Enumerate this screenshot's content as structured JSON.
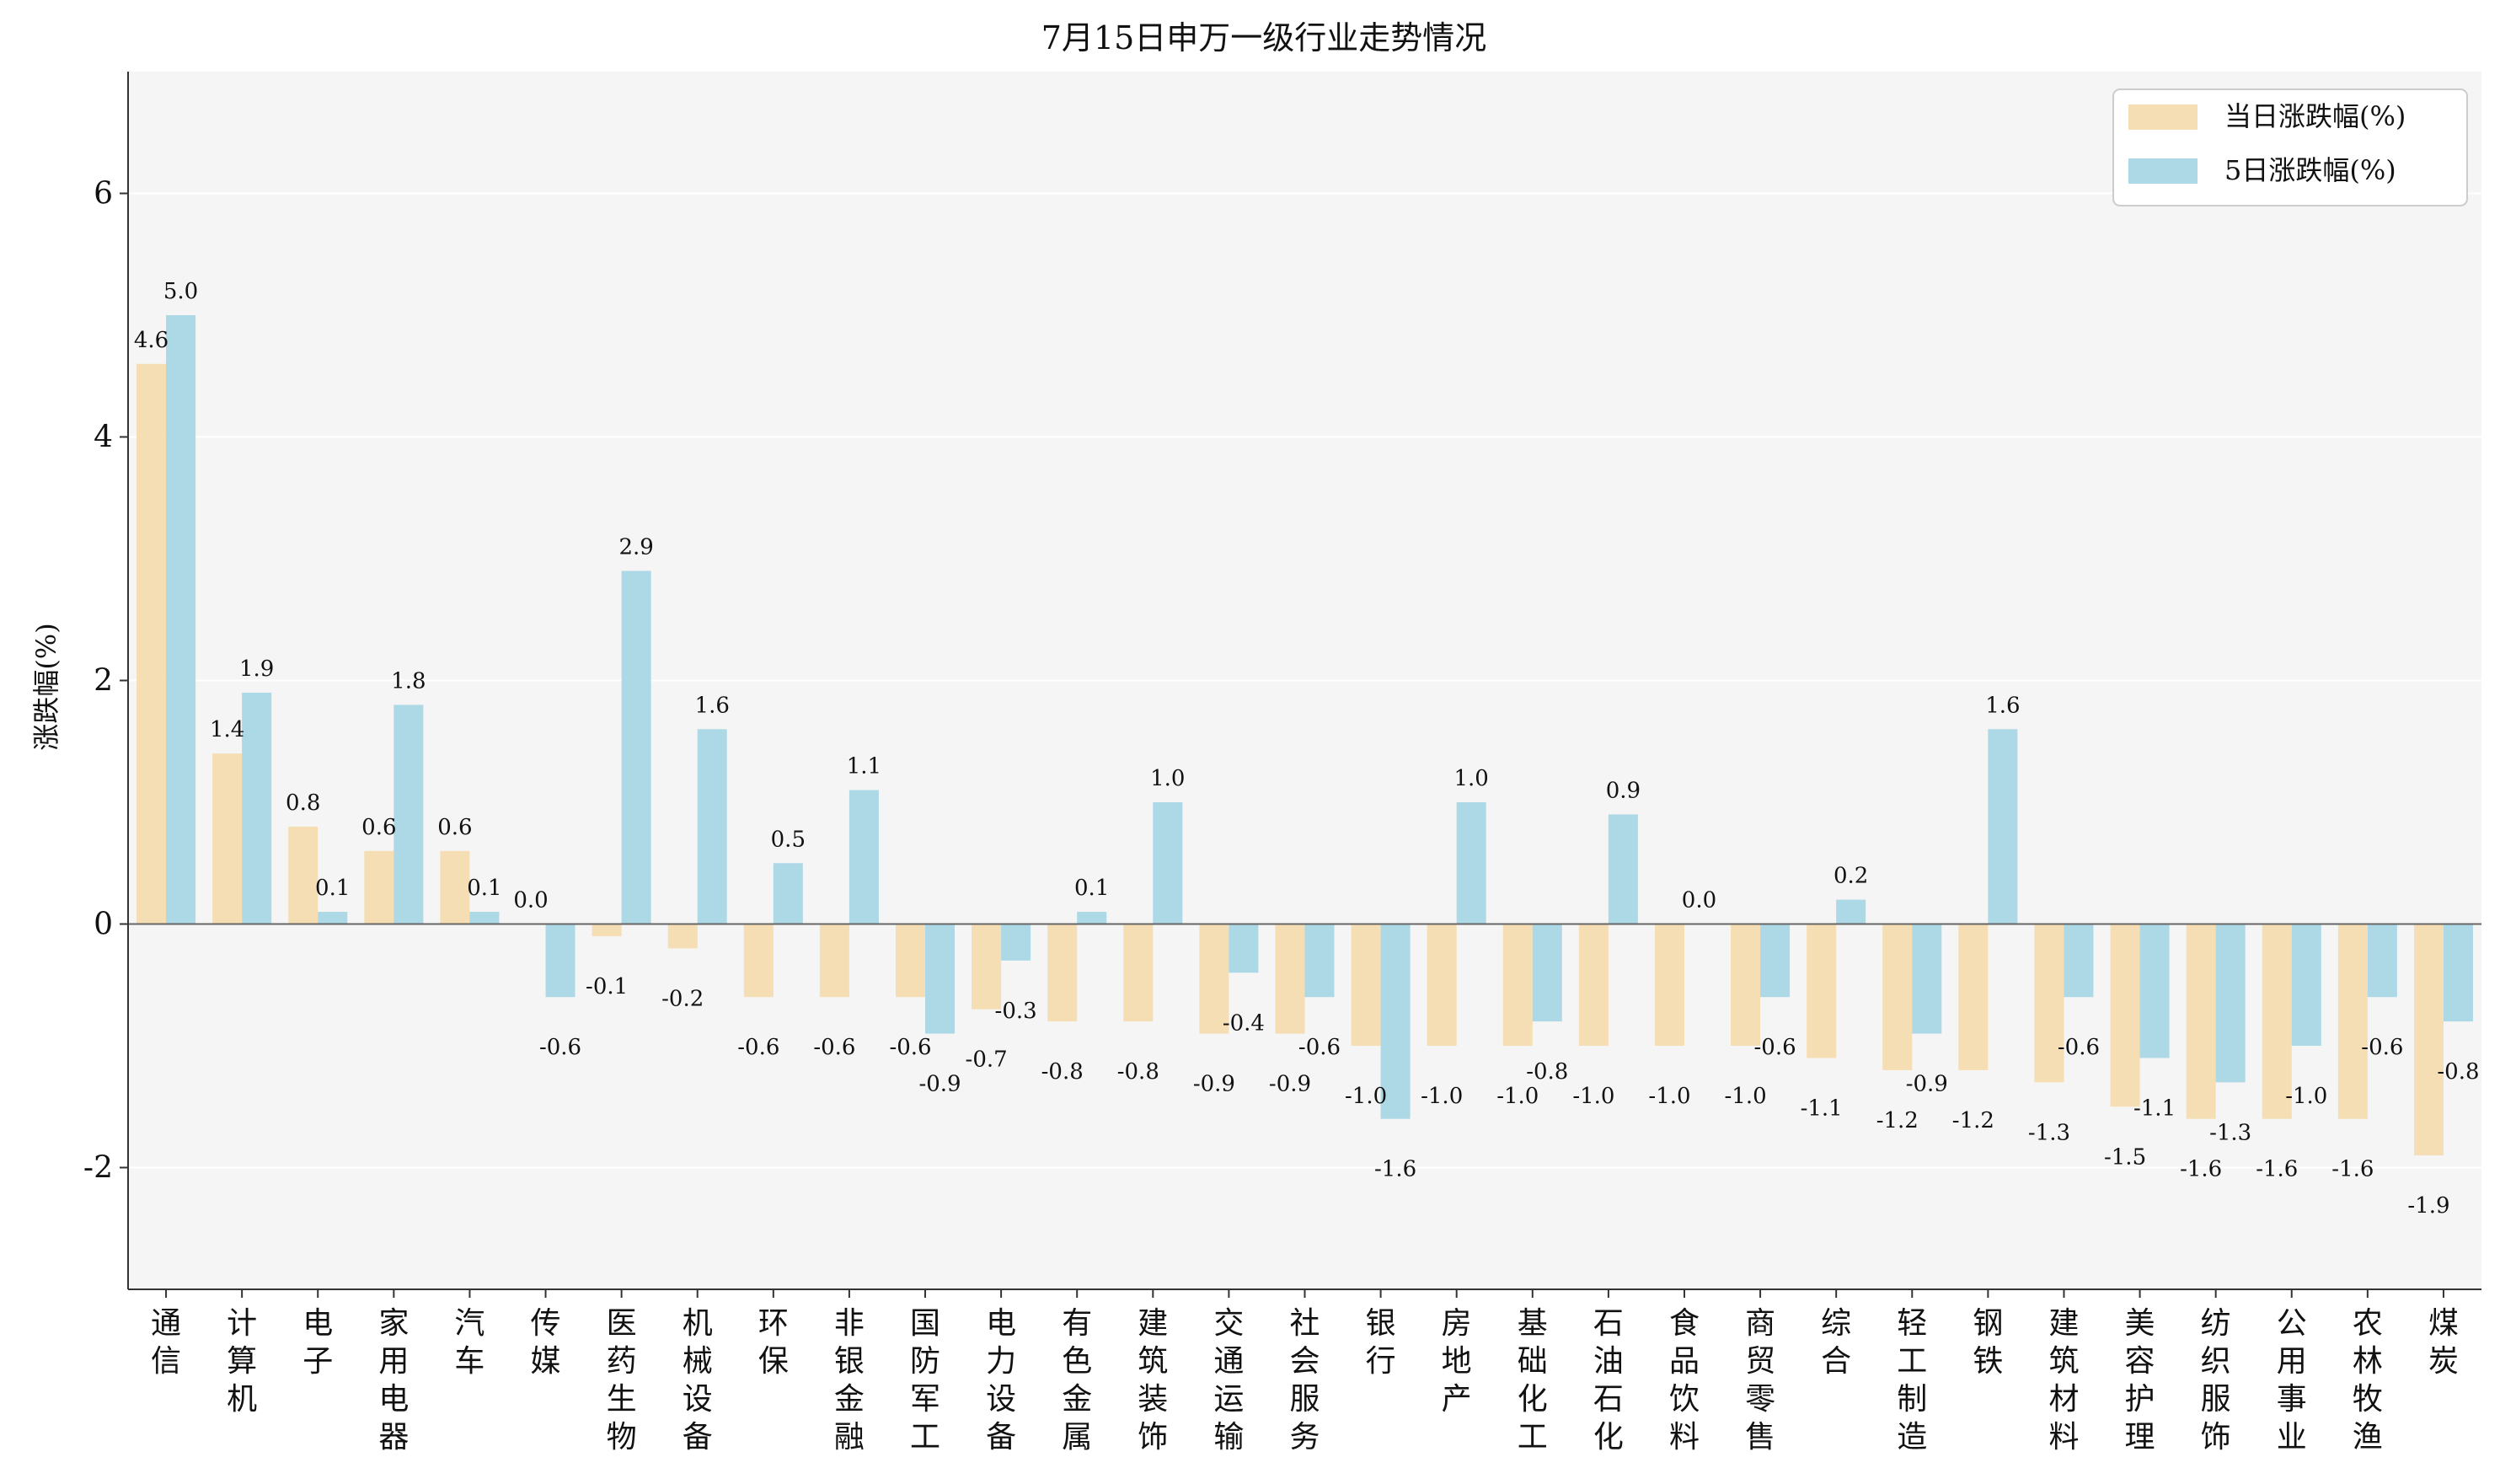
{
  "chart_data": {
    "type": "bar",
    "title": "7月15日申万一级行业走势情况",
    "xlabel": "",
    "ylabel": "涨跌幅(%)",
    "ylim": [
      -3,
      7
    ],
    "yticks": [
      6,
      4,
      2,
      0,
      -2
    ],
    "grid": true,
    "legend_position": "top-right",
    "categories": [
      "通信",
      "计算机",
      "电子",
      "家用电器",
      "汽车",
      "传媒",
      "医药生物",
      "机械设备",
      "环保",
      "非银金融",
      "国防军工",
      "电力设备",
      "有色金属",
      "建筑装饰",
      "交通运输",
      "社会服务",
      "银行",
      "房地产",
      "基础化工",
      "石油石化",
      "食品饮料",
      "商贸零售",
      "综合",
      "轻工制造",
      "钢铁",
      "建筑材料",
      "美容护理",
      "纺织服饰",
      "公用事业",
      "农林牧渔",
      "煤炭"
    ],
    "series": [
      {
        "name": "当日涨跌幅(%)",
        "color": "#f5deb3",
        "values": [
          4.6,
          1.4,
          0.8,
          0.6,
          0.6,
          0.0,
          -0.1,
          -0.2,
          -0.6,
          -0.6,
          -0.6,
          -0.7,
          -0.8,
          -0.8,
          -0.9,
          -0.9,
          -1.0,
          -1.0,
          -1.0,
          -1.0,
          -1.0,
          -1.0,
          -1.1,
          -1.2,
          -1.2,
          -1.3,
          -1.5,
          -1.6,
          -1.6,
          -1.6,
          -1.9
        ]
      },
      {
        "name": "5日涨跌幅(%)",
        "color": "#add8e6",
        "values": [
          5.0,
          1.9,
          0.1,
          1.8,
          0.1,
          -0.6,
          2.9,
          1.6,
          0.5,
          1.1,
          -0.9,
          -0.3,
          0.1,
          1.0,
          -0.4,
          -0.6,
          -1.6,
          1.0,
          -0.8,
          0.9,
          0.0,
          -0.6,
          0.2,
          -0.9,
          1.6,
          -0.6,
          -1.1,
          -1.3,
          -1.0,
          -0.6,
          -0.8
        ]
      }
    ]
  },
  "colors": {
    "plot_background": "#f5f5f5",
    "zero_line": "#666666",
    "grid": "#ffffff"
  }
}
